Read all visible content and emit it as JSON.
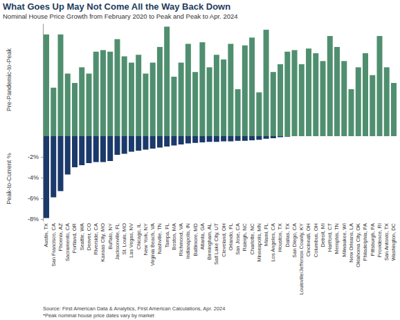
{
  "chart_data": [
    {
      "type": "bar",
      "title": "What Goes Up May Not Come All the Way Back Down",
      "subtitle": "Nominal House Price Growth from February 2020 to Peak and Peak to Apr. 2024",
      "ylabel": "Pre-Pandemic-to-Peak",
      "values": [
        65,
        31,
        65,
        40,
        34,
        44,
        40,
        54,
        55,
        54,
        62,
        51,
        47,
        52,
        40,
        47,
        57,
        70,
        38,
        47,
        59,
        41,
        60,
        44,
        52,
        49,
        59,
        30,
        58,
        63,
        28,
        68,
        41,
        46,
        54,
        55,
        46,
        56,
        53,
        48,
        64,
        57,
        48,
        30,
        44,
        53,
        39,
        64,
        44,
        34
      ],
      "color": "#4f8f6f",
      "ylim": [
        0,
        72
      ],
      "tick_labels": false
    },
    {
      "type": "bar",
      "ylabel": "Peak-to-Current %",
      "categories": [
        "Austin, TX",
        "San Francisco, CA",
        "Phoenix, AZ",
        "Sacramento, CA",
        "Portland, OR",
        "Seattle, WA",
        "Denver, CO",
        "Riverside, CA",
        "Kansas City, MO",
        "Buffalo, NY",
        "Jacksonville, FL",
        "St. Louis, MO",
        "Las Vegas, NV",
        "Chicago, IL",
        "New York, NY",
        "Virginia Beach, VA",
        "Nashville, TN",
        "Tampa, FL",
        "Boston, MA",
        "Richmond, VA",
        "Indianapolis, IN",
        "Baltimore, MD",
        "Atlanta, GA",
        "Birmingham, AL",
        "Salt Lake City, UT",
        "Cleveland, OH",
        "Orlando, FL",
        "San Jose, CA",
        "Raleigh, NC",
        "Charlotte, NC",
        "Minneapolis, MN",
        "Miami, FL",
        "Los Angeles, CA",
        "Houston, TX",
        "Dallas, TX",
        "San Diego, CA",
        "Louisville/Jefferson County, KY",
        "Cincinnati, OH",
        "Columbus, OH",
        "Detroit, MI",
        "Hartford, CT",
        "Memphis, TN",
        "Milwaukee, WI",
        "New Orleans, LA",
        "Oklahoma City, OK",
        "Philadelphia, PA",
        "Pittsburgh, PA",
        "Providence, RI",
        "San Antonio, TX",
        "Washington, DC"
      ],
      "values": [
        -7.9,
        -5.9,
        -5.3,
        -3.7,
        -3.0,
        -2.8,
        -2.6,
        -2.5,
        -2.5,
        -2.4,
        -1.8,
        -1.7,
        -1.5,
        -1.4,
        -1.3,
        -1.2,
        -1.1,
        -1.0,
        -0.9,
        -0.8,
        -0.7,
        -0.65,
        -0.6,
        -0.55,
        -0.55,
        -0.5,
        -0.5,
        -0.45,
        -0.45,
        -0.4,
        -0.35,
        -0.25,
        -0.2,
        -0.1,
        -0.05,
        0,
        0,
        0,
        0,
        0,
        0,
        0,
        0,
        0,
        0,
        0,
        0,
        0,
        0,
        0
      ],
      "color": "#1b3a6b",
      "ylim": [
        -8.2,
        0
      ],
      "yticks": [
        {
          "value": -2,
          "label": "-2%"
        },
        {
          "value": -4,
          "label": "-4%"
        },
        {
          "value": -6,
          "label": "-6%"
        },
        {
          "value": -8,
          "label": "-8%"
        }
      ],
      "source": "Source: First American Data & Analytics, First American Calculations, Apr. 2024",
      "footnote": "*Peak nominal house price dates vary by market"
    }
  ]
}
